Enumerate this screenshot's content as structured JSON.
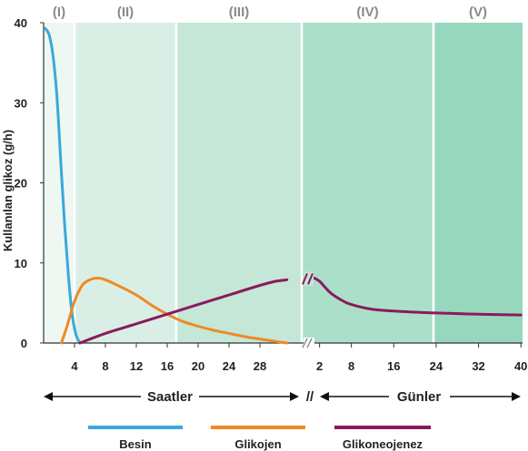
{
  "chart_data": {
    "type": "line",
    "ylabel": "Kullanılan glikoz (g/h)",
    "ylim": [
      0,
      40
    ],
    "y_ticks": [
      "0",
      "10",
      "20",
      "30",
      "40"
    ],
    "x_hours": {
      "label": "Saatler",
      "ticks": [
        "4",
        "8",
        "12",
        "16",
        "20",
        "24",
        "28"
      ]
    },
    "x_days": {
      "label": "Günler",
      "ticks": [
        "2",
        "8",
        "16",
        "24",
        "32",
        "40"
      ]
    },
    "break_mark": "//",
    "phases": [
      {
        "label": "(I)",
        "color": "#eef7f2"
      },
      {
        "label": "(II)",
        "color": "#d9efe6"
      },
      {
        "label": "(III)",
        "color": "#c4e7d8"
      },
      {
        "label": "(IV)",
        "color": "#acdfca"
      },
      {
        "label": "(V)",
        "color": "#97d7be"
      }
    ],
    "series": [
      {
        "name": "Besin",
        "color": "#3aa8dc",
        "segment": "hours",
        "points": [
          [
            0.2,
            39.3
          ],
          [
            0.7,
            38.5
          ],
          [
            1.2,
            36
          ],
          [
            1.7,
            31
          ],
          [
            2.2,
            23
          ],
          [
            2.7,
            15
          ],
          [
            3.2,
            8.5
          ],
          [
            3.7,
            3.5
          ],
          [
            4.2,
            1
          ],
          [
            4.7,
            0
          ]
        ]
      },
      {
        "name": "Glikojen",
        "color": "#ee8a24",
        "segment": "hours",
        "points": [
          [
            2.3,
            0
          ],
          [
            3,
            2
          ],
          [
            4,
            5.2
          ],
          [
            5,
            7.2
          ],
          [
            6,
            7.9
          ],
          [
            7,
            8.1
          ],
          [
            8,
            7.9
          ],
          [
            10,
            7
          ],
          [
            12,
            6
          ],
          [
            14,
            4.7
          ],
          [
            16,
            3.6
          ],
          [
            18,
            2.7
          ],
          [
            20,
            2.1
          ],
          [
            22,
            1.6
          ],
          [
            24,
            1.2
          ],
          [
            26,
            0.8
          ],
          [
            28,
            0.5
          ],
          [
            30,
            0.2
          ],
          [
            31.5,
            0
          ]
        ]
      },
      {
        "name": "Glikoneojenez",
        "color": "#8b1a5c",
        "segment": "hours",
        "points": [
          [
            4.7,
            0
          ],
          [
            8,
            1.2
          ],
          [
            12,
            2.4
          ],
          [
            16,
            3.6
          ],
          [
            20,
            4.8
          ],
          [
            24,
            6
          ],
          [
            28,
            7.2
          ],
          [
            30,
            7.7
          ],
          [
            31.5,
            7.9
          ]
        ]
      },
      {
        "name": "",
        "color": "#8b1a5c",
        "segment": "days",
        "points": [
          [
            1,
            8.1
          ],
          [
            2,
            7.7
          ],
          [
            4,
            6.3
          ],
          [
            6,
            5.4
          ],
          [
            8,
            4.8
          ],
          [
            12,
            4.2
          ],
          [
            16,
            4
          ],
          [
            20,
            3.85
          ],
          [
            24,
            3.75
          ],
          [
            32,
            3.6
          ],
          [
            40,
            3.5
          ]
        ]
      }
    ]
  }
}
